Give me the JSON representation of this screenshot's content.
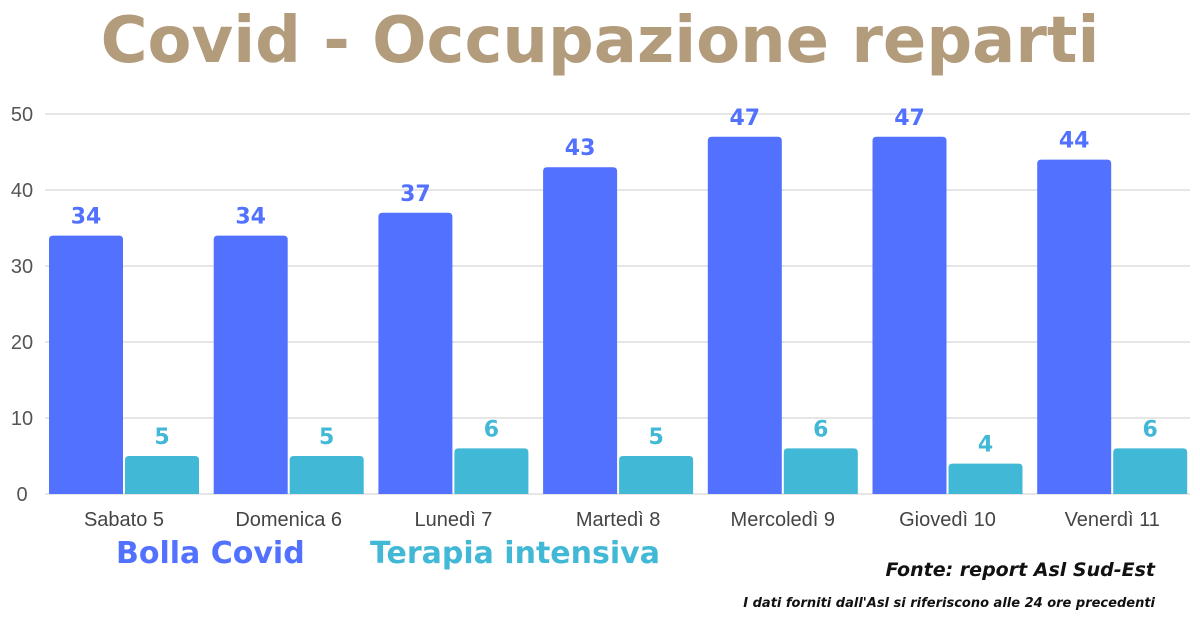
{
  "colors": {
    "title": "#b39c7c",
    "series_1": "#5271ff",
    "series_2": "#41b8d5",
    "grid": "#cccccc"
  },
  "footer": {
    "source": "Fonte: report Asl Sud-Est",
    "note": "I dati forniti dall'Asl si riferiscono alle 24 ore precedenti"
  },
  "chart_data": {
    "type": "bar",
    "title": "Covid - Occupazione reparti",
    "categories": [
      "Sabato 5",
      "Domenica 6",
      "Lunedì 7",
      "Martedì 8",
      "Mercoledì 9",
      "Giovedì 10",
      "Venerdì 11"
    ],
    "series": [
      {
        "name": "Bolla Covid",
        "values": [
          34,
          34,
          37,
          43,
          47,
          47,
          44
        ]
      },
      {
        "name": "Terapia intensiva",
        "values": [
          5,
          5,
          6,
          5,
          6,
          4,
          6
        ]
      }
    ],
    "ylim": [
      0,
      50
    ],
    "yticks": [
      0,
      10,
      20,
      30,
      40,
      50
    ],
    "grid": true,
    "legend_position": "bottom-left",
    "data_labels": true
  }
}
